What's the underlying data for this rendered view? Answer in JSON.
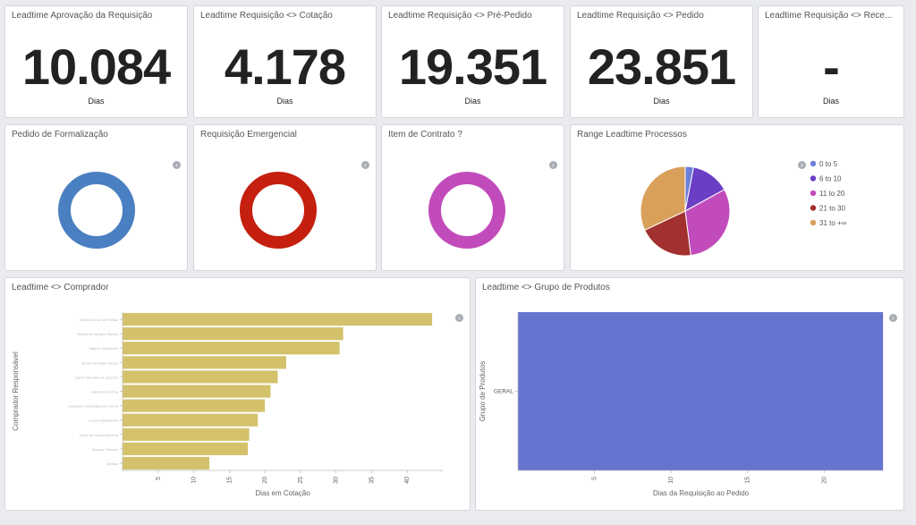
{
  "metrics": [
    {
      "title": "Leadtime Aprovação da Requisição",
      "value": "10.084",
      "unit": "Dias"
    },
    {
      "title": "Leadtime Requisição <> Cotação",
      "value": "4.178",
      "unit": "Dias"
    },
    {
      "title": "Leadtime Requisição <> Pré-Pedido",
      "value": "19.351",
      "unit": "Dias"
    },
    {
      "title": "Leadtime Requisição <> Pedido",
      "value": "23.851",
      "unit": "Dias"
    },
    {
      "title": "Leadtime Requisição <> Rece...",
      "value": "-",
      "unit": "Dias"
    }
  ],
  "donuts": [
    {
      "title": "Pedido de Formalização",
      "color": "#4a7fc1"
    },
    {
      "title": "Requisição Emergencial",
      "color": "#c51f0f"
    },
    {
      "title": "Item de Contrato ?",
      "color": "#c24bbb"
    }
  ],
  "toggle_icon": "chevron-left-icon",
  "legend_toggle_icon": "chevron-right-icon",
  "chart_data": [
    {
      "type": "pie",
      "title": "Range Leadtime Processos",
      "legend_position": "right",
      "slices": [
        {
          "label": "0 to 5",
          "value": 3,
          "color": "#6b7fd7"
        },
        {
          "label": "6 to 10",
          "value": 14,
          "color": "#6a3fc4"
        },
        {
          "label": "11 to 20",
          "value": 31,
          "color": "#c24bbb"
        },
        {
          "label": "21 to 30",
          "value": 20,
          "color": "#a2302e"
        },
        {
          "label": "31 to +∞",
          "value": 32,
          "color": "#d9a05b"
        }
      ]
    },
    {
      "type": "bar",
      "orientation": "horizontal",
      "title": "Leadtime <> Comprador",
      "xlabel": "Dias em Cotação",
      "ylabel": "Comprador Responsável",
      "xlim": [
        0,
        45
      ],
      "xticks": [
        5,
        10,
        15,
        20,
        25,
        30,
        35,
        40
      ],
      "color": "#d3c26b",
      "categories": [
        "Eduardo Luiz de Freitas",
        "Guilherme Borges Ribeiro",
        "Tatiane Gonsalves",
        "Bruno Henrique Neves",
        "Jaime Carvalho de Queiroz",
        "Alessandra Lima",
        "Geovana Guimarães do Carmo",
        "Lucas Nascimento",
        "Fabio de Souza Bezerra",
        "Marcos Pinheiro",
        "Denise"
      ],
      "values": [
        43.5,
        31,
        30.5,
        23,
        21.8,
        20.8,
        20,
        19,
        17.8,
        17.6,
        12.2
      ]
    },
    {
      "type": "bar",
      "orientation": "horizontal",
      "title": "Leadtime <> Grupo de Produtos",
      "xlabel": "Dias da Requisição ao Pedido",
      "ylabel": "Grupo de Produtos",
      "xlim": [
        0,
        23.9
      ],
      "xticks": [
        5,
        10,
        15,
        20
      ],
      "color": "#6674cf",
      "categories": [
        "GERAL"
      ],
      "values": [
        23.85
      ]
    }
  ]
}
